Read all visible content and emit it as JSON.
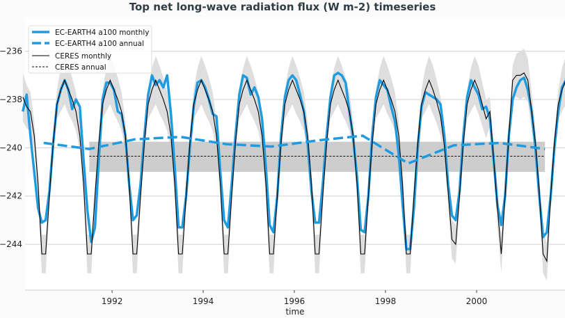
{
  "chart_data": {
    "type": "line",
    "title": "Top net long-wave radiation flux (W m-2) timeseries",
    "xlabel": "time",
    "ylabel": "",
    "xlim": [
      1990.09,
      2001.94
    ],
    "ylim": [
      -245.9,
      -234.6
    ],
    "x_ticks": [
      "1992",
      "1994",
      "1996",
      "1998",
      "2000"
    ],
    "y_ticks": [
      "-236",
      "-238",
      "-240",
      "-242",
      "-244"
    ],
    "grid": "horizontal",
    "legend_position": "top-left",
    "colors": {
      "model": "#1f9be0",
      "ceres": "#000000",
      "ceres_band": "#c8c8c8",
      "ceres_range": "#dedede"
    },
    "years": [
      1990,
      1991,
      1992,
      1993,
      1994,
      1995,
      1996,
      1997,
      1998,
      1999,
      2000,
      2001
    ],
    "series": [
      {
        "name": "EC-EARTH4 a100 monthly",
        "style": "solid-thick",
        "monthly_by_year": [
          [
            -238.5,
            -237.8,
            -239.5,
            -241.0,
            -242.5,
            -243.1,
            -243.0,
            -241.8,
            -239.8,
            -238.2,
            -237.6,
            -237.2
          ],
          [
            -237.6,
            -238.4,
            -238.0,
            -238.3,
            -240.5,
            -242.6,
            -243.9,
            -243.3,
            -240.5,
            -238.0,
            -237.3,
            -237.3
          ],
          [
            -237.6,
            -238.5,
            -238.6,
            -239.5,
            -241.5,
            -243.0,
            -242.8,
            -241.5,
            -239.5,
            -237.8,
            -237.0,
            -237.4
          ],
          [
            -237.2,
            -237.5,
            -237.0,
            -238.6,
            -240.8,
            -243.3,
            -243.3,
            -242.0,
            -240.0,
            -238.3,
            -237.3,
            -237.2
          ],
          [
            -237.5,
            -238.0,
            -238.6,
            -238.7,
            -241.0,
            -243.0,
            -243.3,
            -241.5,
            -239.5,
            -237.8,
            -237.0,
            -237.1
          ],
          [
            -237.8,
            -237.5,
            -237.9,
            -238.8,
            -240.8,
            -243.2,
            -243.5,
            -242.0,
            -239.5,
            -237.9,
            -237.2,
            -237.0
          ],
          [
            -237.2,
            -237.8,
            -238.5,
            -239.8,
            -241.8,
            -243.1,
            -243.1,
            -241.5,
            -239.5,
            -237.9,
            -237.0,
            -236.9
          ],
          [
            -237.0,
            -237.3,
            -238.5,
            -239.6,
            -241.2,
            -243.4,
            -243.5,
            -242.0,
            -239.5,
            -237.9,
            -237.2,
            -237.4
          ],
          [
            -237.6,
            -238.3,
            -238.9,
            -240.3,
            -242.3,
            -244.2,
            -244.2,
            -242.5,
            -240.0,
            -238.3,
            -237.7,
            -237.8
          ],
          [
            -237.9,
            -238.0,
            -238.2,
            -239.5,
            -241.5,
            -242.8,
            -243.0,
            -241.8,
            -239.5,
            -237.9,
            -237.2,
            -237.5
          ],
          [
            -237.8,
            -238.4,
            -238.3,
            -238.8,
            -240.5,
            -242.4,
            -243.2,
            -242.0,
            -239.5,
            -238.0,
            -237.5,
            -237.2
          ],
          [
            -237.1,
            -237.6,
            -238.5,
            -240.0,
            -242.0,
            -243.7,
            -243.5,
            -242.0,
            -240.0,
            -238.5,
            -237.5,
            -237.2
          ]
        ]
      },
      {
        "name": "EC-EARTH4 a100 annual",
        "style": "dashed-thick",
        "annual": [
          -239.8,
          -240.05,
          -239.65,
          -239.55,
          -239.85,
          -239.95,
          -239.7,
          -239.5,
          -240.65,
          -239.9,
          -239.8,
          -240.05
        ]
      },
      {
        "name": "CERES monthly",
        "style": "solid-thin",
        "monthly_by_year": [
          [
            -237.9,
            -238.3,
            -238.5,
            -239.5,
            -241.5,
            -244.4,
            -244.4,
            -242.0,
            -239.8,
            -238.2,
            -237.6,
            -237.2
          ],
          [
            -237.6,
            -238.0,
            -238.5,
            -239.5,
            -241.5,
            -244.4,
            -244.4,
            -242.0,
            -239.8,
            -238.2,
            -237.6,
            -237.2
          ],
          [
            -237.6,
            -238.0,
            -238.5,
            -239.5,
            -241.5,
            -244.4,
            -244.4,
            -242.0,
            -239.8,
            -238.2,
            -237.6,
            -237.2
          ],
          [
            -237.6,
            -238.0,
            -238.5,
            -239.5,
            -241.5,
            -244.4,
            -244.4,
            -242.0,
            -239.8,
            -238.2,
            -237.6,
            -237.2
          ],
          [
            -237.6,
            -238.0,
            -238.5,
            -239.5,
            -241.5,
            -244.4,
            -244.4,
            -242.0,
            -239.8,
            -238.2,
            -237.6,
            -237.2
          ],
          [
            -237.6,
            -238.0,
            -238.5,
            -239.5,
            -241.5,
            -244.4,
            -244.4,
            -242.0,
            -239.8,
            -238.2,
            -237.6,
            -237.2
          ],
          [
            -237.6,
            -238.0,
            -238.5,
            -239.5,
            -241.5,
            -244.4,
            -244.4,
            -242.0,
            -239.8,
            -238.2,
            -237.6,
            -237.2
          ],
          [
            -237.6,
            -238.0,
            -238.5,
            -239.5,
            -241.5,
            -244.4,
            -244.4,
            -242.0,
            -239.8,
            -238.2,
            -237.6,
            -237.2
          ],
          [
            -237.6,
            -238.0,
            -238.5,
            -239.5,
            -241.5,
            -244.4,
            -244.4,
            -242.0,
            -239.8,
            -238.2,
            -237.6,
            -237.2
          ],
          [
            -237.6,
            -238.1,
            -238.7,
            -239.9,
            -241.8,
            -243.8,
            -244.0,
            -242.0,
            -239.8,
            -238.2,
            -237.6,
            -237.2
          ],
          [
            -237.6,
            -238.2,
            -238.8,
            -238.5,
            -240.5,
            -242.5,
            -244.4,
            -242.0,
            -239.5,
            -237.2,
            -237.0,
            -237.0
          ],
          [
            -236.9,
            -237.2,
            -238.5,
            -239.8,
            -241.8,
            -244.4,
            -244.7,
            -242.0,
            -239.8,
            -238.2,
            -237.6,
            -237.2
          ]
        ]
      },
      {
        "name": "CERES annual",
        "style": "dashed-thin",
        "value": -240.35,
        "x_range": [
          1991.5,
          2001.5
        ],
        "band": [
          -241.0,
          -239.75
        ]
      }
    ],
    "ceres_monthly_spread": [
      1.0,
      0.9,
      0.8,
      0.6,
      0.6,
      0.8,
      0.8,
      0.5,
      0.4,
      0.6,
      0.9,
      1.0
    ]
  }
}
